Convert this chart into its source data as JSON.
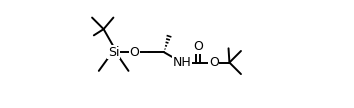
{
  "bg": "#ffffff",
  "lc": "#000000",
  "lw": 1.4,
  "fs": 8.5,
  "xlim": [
    0,
    10.5
  ],
  "ylim": [
    0,
    6
  ],
  "figw": 3.54,
  "figh": 1.08,
  "dpi": 100
}
